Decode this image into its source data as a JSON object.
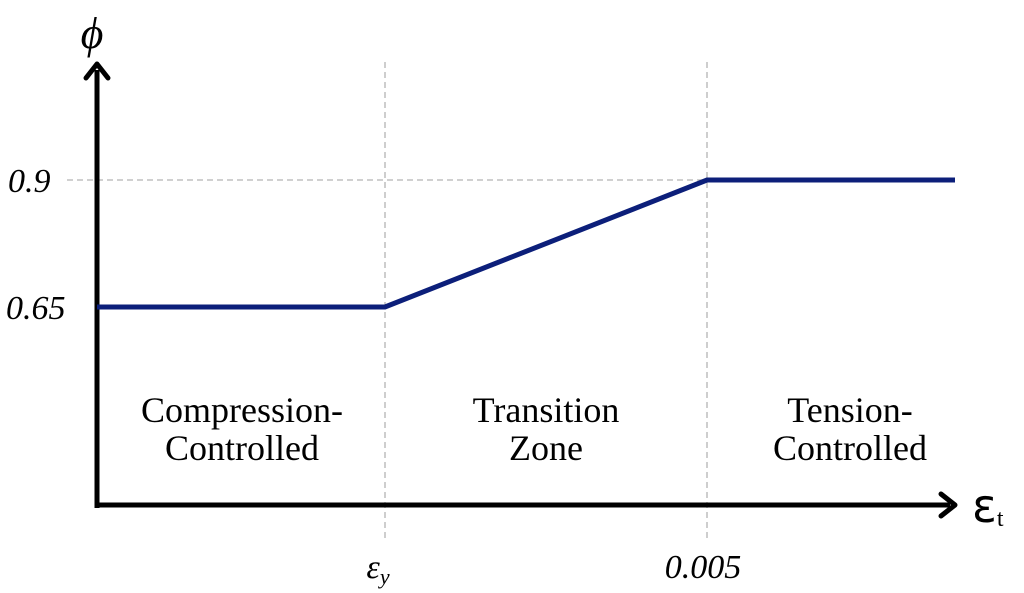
{
  "chart_data": {
    "type": "line",
    "ylabel": "ϕ",
    "xlabel": "ε",
    "xlabel_sub": "t",
    "x_ticks": [
      {
        "label": "ε",
        "sub": "y"
      },
      {
        "label": "0.005",
        "sub": ""
      }
    ],
    "y_ticks": [
      "0.9",
      "0.65"
    ],
    "y_values": [
      0.9,
      0.65
    ],
    "series": [
      {
        "points": [
          {
            "x": "origin",
            "y": 0.65
          },
          {
            "x": "ε_y",
            "y": 0.65
          },
          {
            "x": "0.005",
            "y": 0.9
          },
          {
            "x": "beyond",
            "y": 0.9
          }
        ]
      }
    ],
    "regions": [
      {
        "line1": "Compression-",
        "line2": "Controlled"
      },
      {
        "line1": "Transition",
        "line2": "Zone"
      },
      {
        "line1": "Tension-",
        "line2": "Controlled"
      }
    ],
    "grid": "dashed guide lines at ε_y, 0.005 and 0.9",
    "colors": {
      "line": "#0c1f7a",
      "axis": "#000000",
      "guide": "#b4b4b4"
    }
  }
}
